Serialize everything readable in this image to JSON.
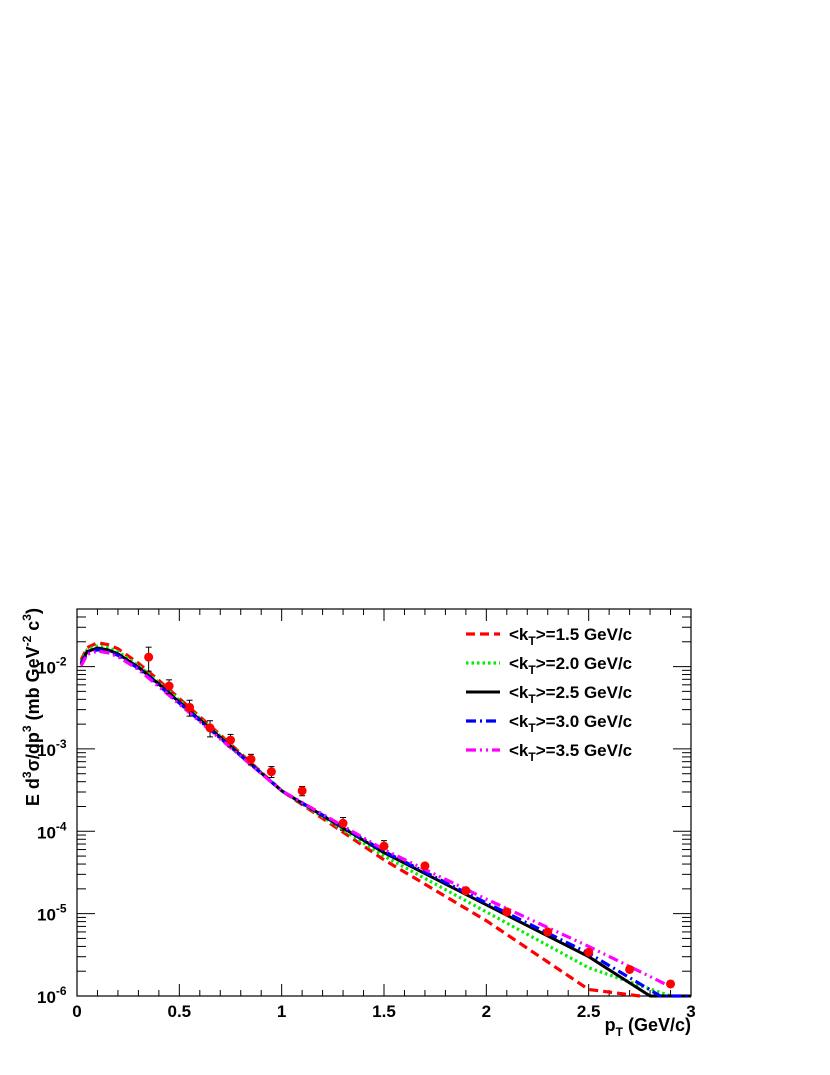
{
  "chart_data": {
    "type": "scatter",
    "title": "",
    "xlabel": "p_T (GeV/c)",
    "ylabel": "E d^3σ/dp^3 (mb GeV^-2 c^3)",
    "xlim": [
      0,
      3
    ],
    "ylim": [
      1e-06,
      0.05
    ],
    "yscale": "log",
    "grid": false,
    "legend_position": "top-right",
    "x_ticks": [
      "0",
      "0.5",
      "1",
      "1.5",
      "2",
      "2.5",
      "3"
    ],
    "y_ticks": [
      "10^-6",
      "10^-5",
      "10^-4",
      "10^-3",
      "10^-2"
    ],
    "data_points": {
      "color": "#ff0000",
      "x": [
        0.35,
        0.45,
        0.55,
        0.65,
        0.75,
        0.85,
        0.95,
        1.1,
        1.3,
        1.5,
        1.7,
        1.9,
        2.1,
        2.3,
        2.5,
        2.7,
        2.9
      ],
      "y": [
        0.013,
        0.0058,
        0.0032,
        0.0018,
        0.00128,
        0.00075,
        0.00053,
        0.00031,
        0.000125,
        6.6e-05,
        3.8e-05,
        1.9e-05,
        1.05e-05,
        6e-06,
        3.4e-06,
        2.1e-06,
        1.4e-06
      ],
      "yerr": [
        0.0042,
        0.0011,
        0.0007,
        0.0004,
        0.00022,
        0.00011,
        8e-05,
        4e-05,
        2.2e-05,
        1.1e-05,
        0,
        0,
        0,
        0,
        0,
        0,
        0
      ]
    },
    "series": [
      {
        "name": "<k_T>=1.5 GeV/c",
        "color": "#ff0000",
        "dash": "dashed",
        "x": [
          0.02,
          0.05,
          0.1,
          0.15,
          0.2,
          0.3,
          0.4,
          0.5,
          0.7,
          1.0,
          1.5,
          2.0,
          2.5,
          2.75
        ],
        "y": [
          0.012,
          0.017,
          0.0195,
          0.0185,
          0.0165,
          0.011,
          0.0068,
          0.0041,
          0.00148,
          0.00031,
          4.5e-05,
          8.2e-06,
          1.2e-06,
          1e-06
        ]
      },
      {
        "name": "<k_T>=2.0 GeV/c",
        "color": "#00ee00",
        "dash": "dotted",
        "x": [
          0.02,
          0.05,
          0.1,
          0.15,
          0.2,
          0.3,
          0.4,
          0.5,
          0.7,
          1.0,
          1.5,
          2.0,
          2.5,
          2.9
        ],
        "y": [
          0.0115,
          0.016,
          0.0178,
          0.017,
          0.0152,
          0.0103,
          0.0064,
          0.0039,
          0.00142,
          0.00031,
          5e-05,
          1.05e-05,
          2.2e-06,
          1e-06
        ]
      },
      {
        "name": "<k_T>=2.5 GeV/c",
        "color": "#000000",
        "dash": "solid",
        "x": [
          0.02,
          0.05,
          0.1,
          0.15,
          0.2,
          0.3,
          0.4,
          0.5,
          0.7,
          1.0,
          1.5,
          2.0,
          2.5,
          2.8,
          3.0
        ],
        "y": [
          0.011,
          0.0152,
          0.0168,
          0.016,
          0.0143,
          0.0098,
          0.0061,
          0.0037,
          0.00138,
          0.00031,
          5.5e-05,
          1.28e-05,
          3e-06,
          1e-06,
          1e-06
        ]
      },
      {
        "name": "<k_T>=3.0 GeV/c",
        "color": "#0000ff",
        "dash": "dashdot",
        "x": [
          0.02,
          0.05,
          0.1,
          0.15,
          0.2,
          0.3,
          0.4,
          0.5,
          0.7,
          1.0,
          1.5,
          2.0,
          2.5,
          2.85,
          3.0
        ],
        "y": [
          0.0106,
          0.0147,
          0.016,
          0.0153,
          0.0137,
          0.0095,
          0.0059,
          0.0036,
          0.00135,
          0.00031,
          5.7e-05,
          1.35e-05,
          3.3e-06,
          1e-06,
          1e-06
        ]
      },
      {
        "name": "<k_T>=3.5 GeV/c",
        "color": "#ff00ff",
        "dash": "dashdotdot",
        "x": [
          0.02,
          0.05,
          0.1,
          0.15,
          0.2,
          0.3,
          0.4,
          0.5,
          0.7,
          1.0,
          1.5,
          2.0,
          2.5,
          2.9
        ],
        "y": [
          0.0102,
          0.0141,
          0.0154,
          0.0147,
          0.0132,
          0.0092,
          0.0057,
          0.0035,
          0.00132,
          0.00031,
          6e-05,
          1.5e-05,
          4e-06,
          1.3e-06
        ]
      }
    ]
  }
}
